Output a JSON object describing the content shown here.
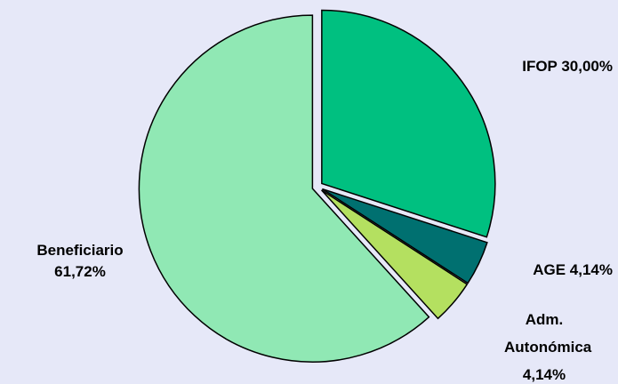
{
  "chart_data": {
    "type": "pie",
    "categories": [
      "IFOP",
      "AGE",
      "Adm. Autonómica",
      "Beneficiario"
    ],
    "values": [
      30.0,
      4.14,
      4.14,
      61.72
    ],
    "value_labels": [
      "30,00%",
      "4,14%",
      "4,14%",
      "61,72%"
    ],
    "colors": [
      "#00c080",
      "#007070",
      "#b4e060",
      "#90e8b4"
    ]
  }
}
